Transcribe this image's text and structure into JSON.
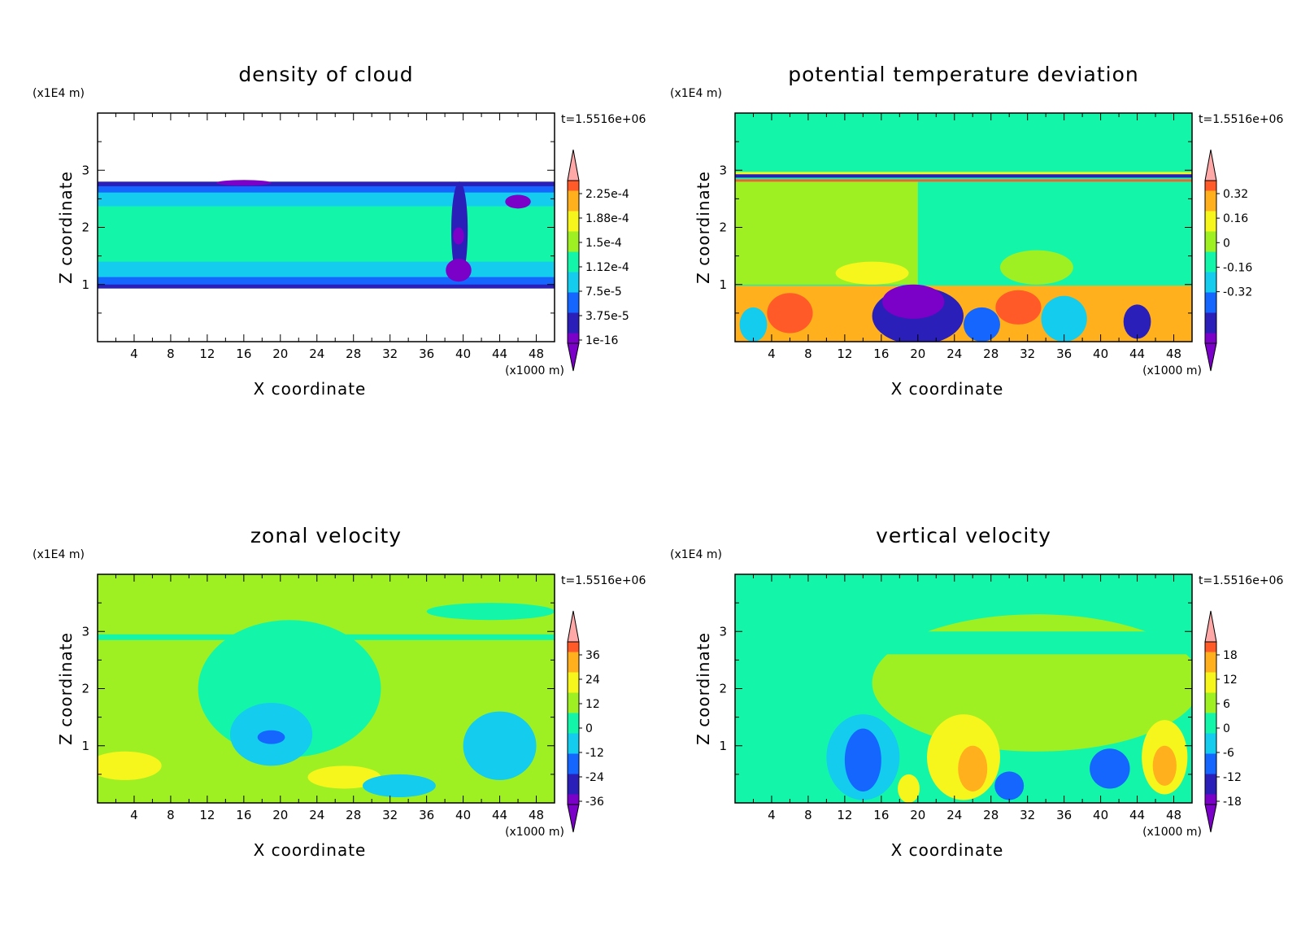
{
  "panels": [
    {
      "title": "density of cloud",
      "time_label": "t=1.5516e+06",
      "colorbar": {
        "labels": [
          "2.25e-4",
          "1.88e-4",
          "1.5e-4",
          "1.12e-4",
          "7.5e-5",
          "3.75e-5",
          "1e-16"
        ]
      }
    },
    {
      "title": "potential temperature deviation",
      "time_label": "t=1.5516e+06",
      "colorbar": {
        "labels": [
          "0.32",
          "0.16",
          "0",
          "-0.16",
          "-0.32"
        ]
      }
    },
    {
      "title": "zonal velocity",
      "time_label": "t=1.5516e+06",
      "colorbar": {
        "labels": [
          "36",
          "24",
          "12",
          "0",
          "-12",
          "-24",
          "-36"
        ]
      }
    },
    {
      "title": "vertical velocity",
      "time_label": "t=1.5516e+06",
      "colorbar": {
        "labels": [
          "18",
          "12",
          "6",
          "0",
          "-6",
          "-12",
          "-18"
        ]
      }
    }
  ],
  "chart_data": [
    {
      "type": "heatmap",
      "title": "density of cloud",
      "xlabel": "X coordinate",
      "x_unit": "(x1000 m)",
      "ylabel": "Z coordinate",
      "y_unit": "(x1E4 m)",
      "xlim": [
        0,
        50
      ],
      "ylim": [
        0,
        4
      ],
      "xticks": [
        4,
        8,
        12,
        16,
        20,
        24,
        28,
        32,
        36,
        40,
        44,
        48
      ],
      "yticks": [
        1,
        2,
        3
      ],
      "levels": [
        "2.25e-4",
        "1.88e-4",
        "1.5e-4",
        "1.12e-4",
        "7.5e-5",
        "3.75e-5",
        "1e-16"
      ],
      "colors": [
        "#7b00c8",
        "#2a1fb8",
        "#1466ff",
        "#13ccee",
        "#13f6a9",
        "#9ef023",
        "#f6f61c",
        "#ffb01c",
        "#ff5a28",
        "#ffa8a8"
      ]
    },
    {
      "type": "heatmap",
      "title": "potential temperature deviation",
      "xlabel": "X coordinate",
      "x_unit": "(x1000 m)",
      "ylabel": "Z coordinate",
      "y_unit": "(x1E4 m)",
      "xlim": [
        0,
        50
      ],
      "ylim": [
        0,
        4
      ],
      "xticks": [
        4,
        8,
        12,
        16,
        20,
        24,
        28,
        32,
        36,
        40,
        44,
        48
      ],
      "yticks": [
        1,
        2,
        3
      ],
      "levels": [
        "0.32",
        "0.16",
        "0",
        "-0.16",
        "-0.32"
      ]
    },
    {
      "type": "heatmap",
      "title": "zonal velocity",
      "xlabel": "X coordinate",
      "x_unit": "(x1000 m)",
      "ylabel": "Z coordinate",
      "y_unit": "(x1E4 m)",
      "xlim": [
        0,
        50
      ],
      "ylim": [
        0,
        4
      ],
      "xticks": [
        4,
        8,
        12,
        16,
        20,
        24,
        28,
        32,
        36,
        40,
        44,
        48
      ],
      "yticks": [
        1,
        2,
        3
      ],
      "levels": [
        "36",
        "24",
        "12",
        "0",
        "-12",
        "-24",
        "-36"
      ]
    },
    {
      "type": "heatmap",
      "title": "vertical velocity",
      "xlabel": "X coordinate",
      "x_unit": "(x1000 m)",
      "ylabel": "Z coordinate",
      "y_unit": "(x1E4 m)",
      "xlim": [
        0,
        50
      ],
      "ylim": [
        0,
        4
      ],
      "xticks": [
        4,
        8,
        12,
        16,
        20,
        24,
        28,
        32,
        36,
        40,
        44,
        48
      ],
      "yticks": [
        1,
        2,
        3
      ],
      "levels": [
        "18",
        "12",
        "6",
        "0",
        "-6",
        "-12",
        "-18"
      ]
    }
  ]
}
